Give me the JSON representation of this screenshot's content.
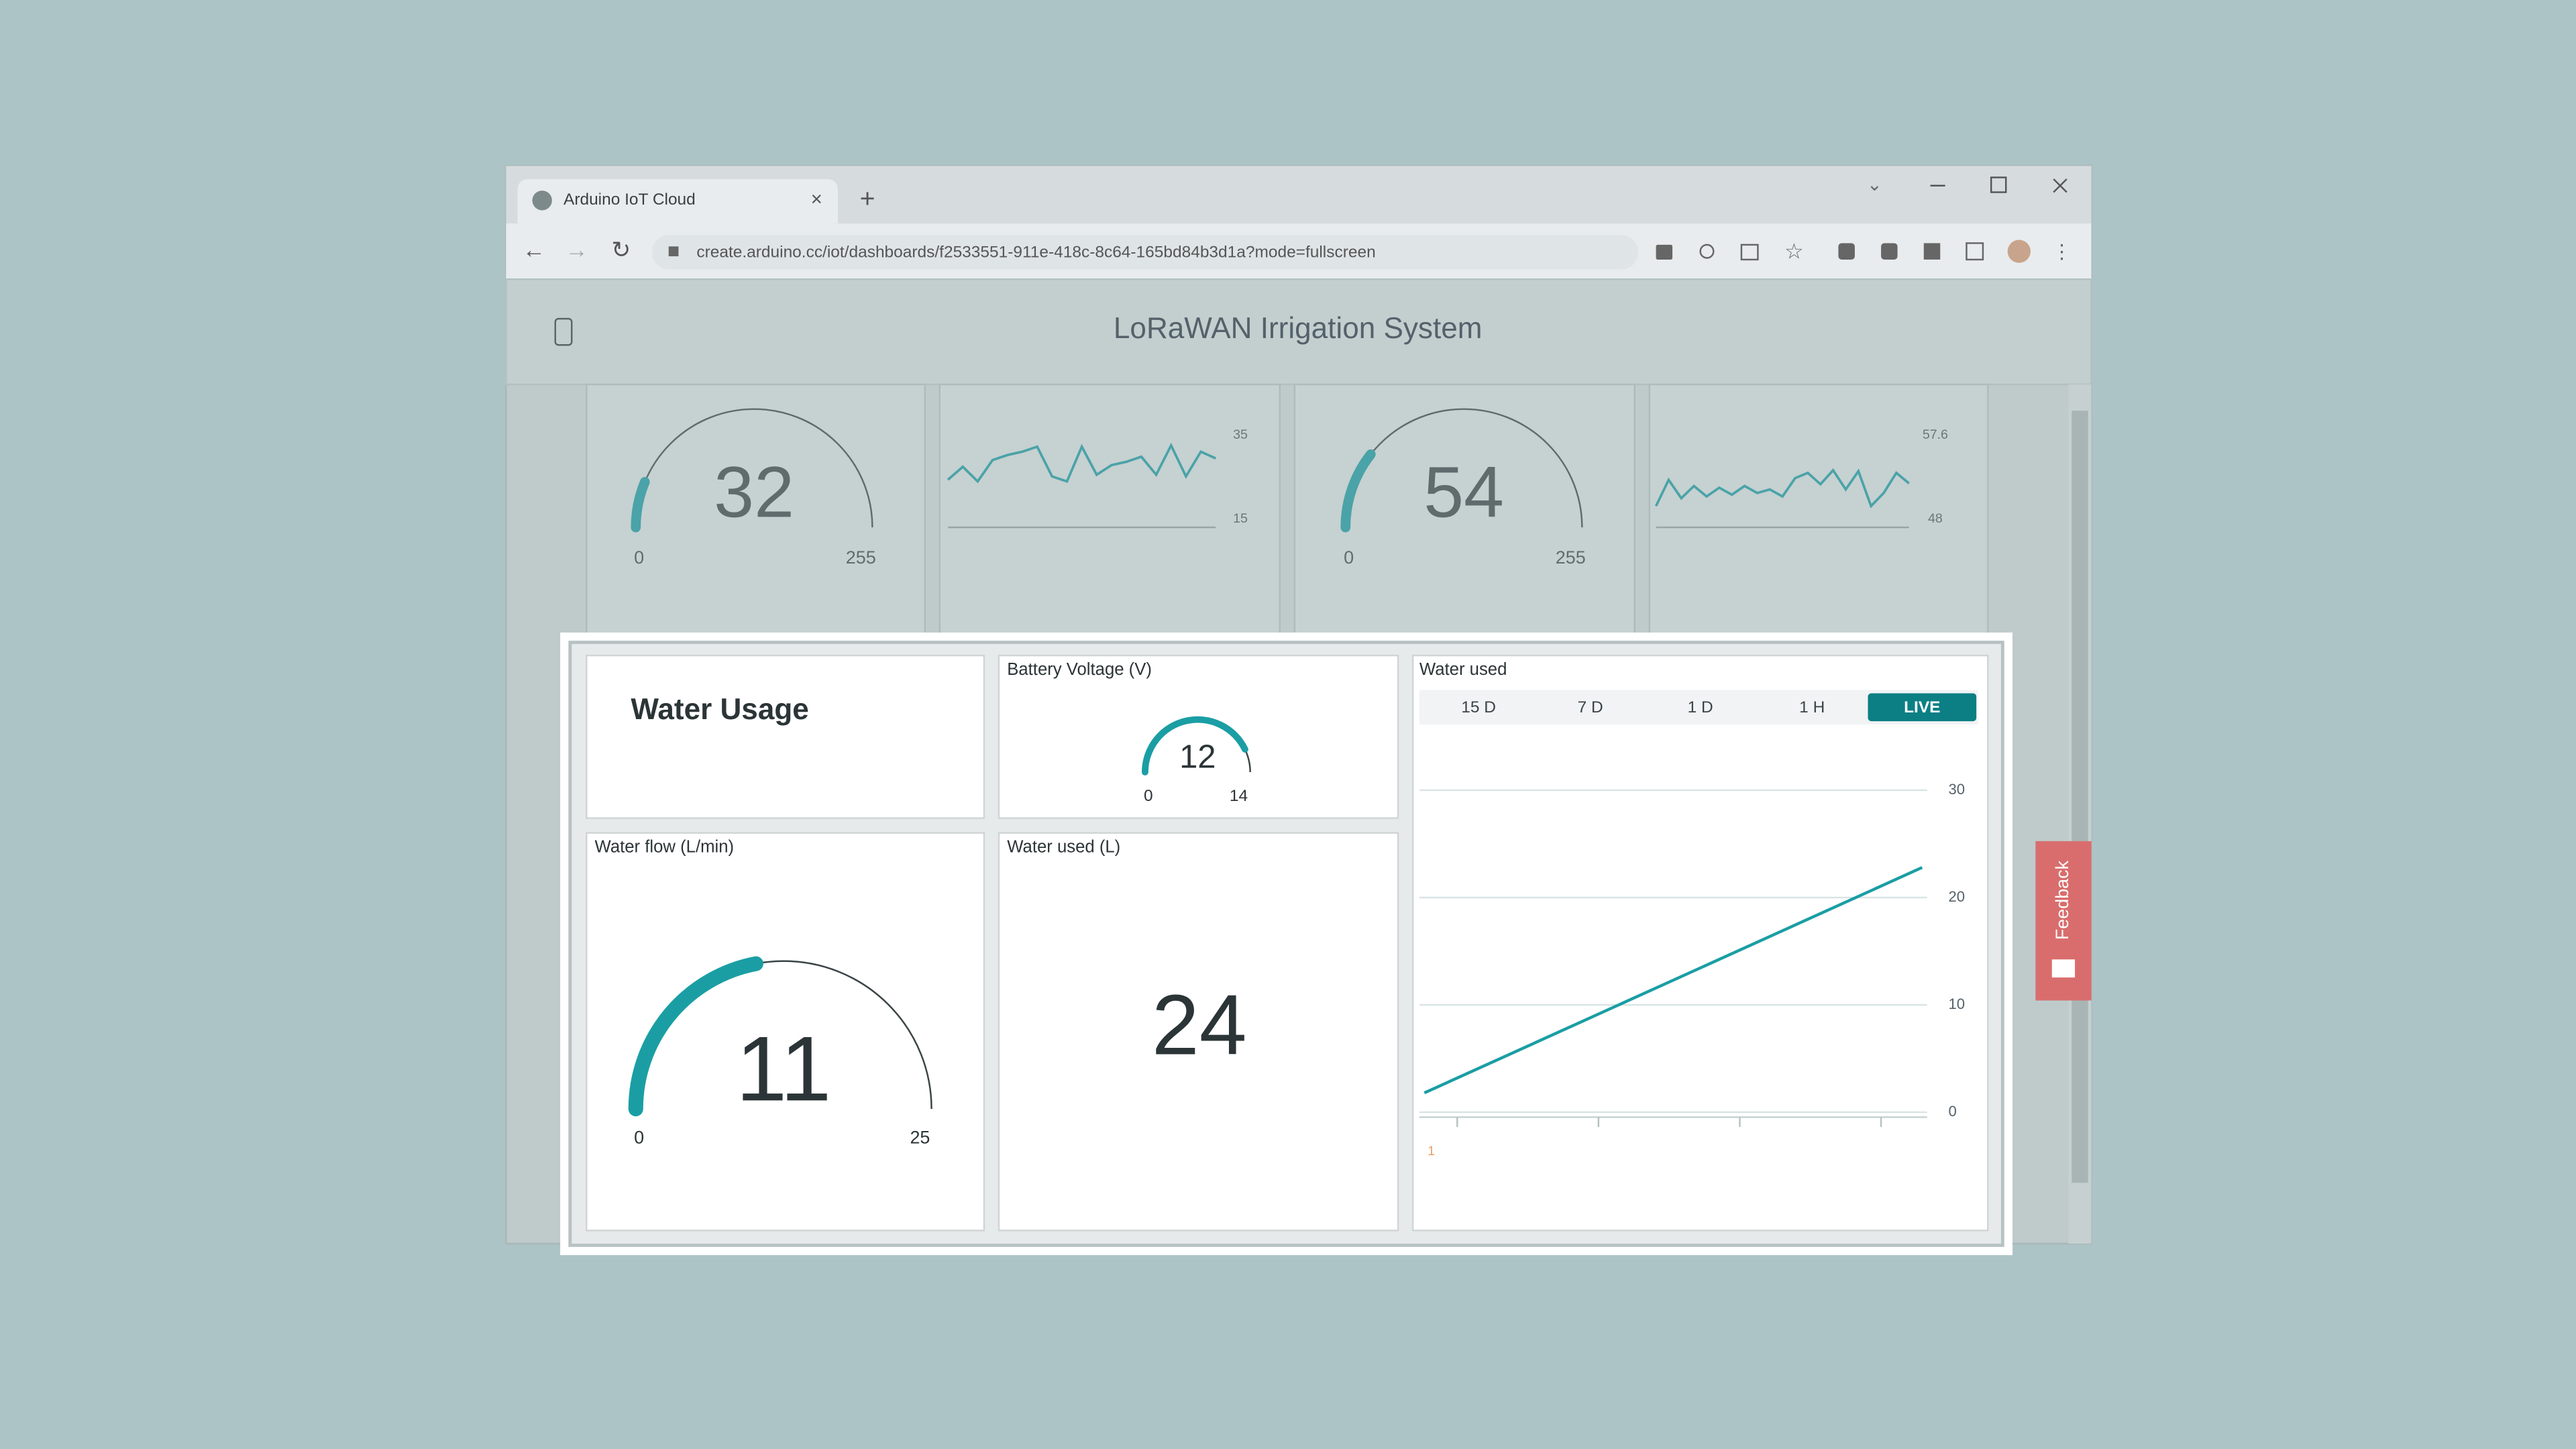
{
  "browser": {
    "tab_title": "Arduino IoT Cloud",
    "url": "create.arduino.cc/iot/dashboards/f2533551-911e-418c-8c64-165bd84b3d1a?mode=fullscreen"
  },
  "header": {
    "title": "LoRaWAN Irrigation System"
  },
  "widgets": [
    {
      "type": "gauge",
      "value": 32,
      "min": 0,
      "max": 255
    },
    {
      "type": "line",
      "values": [
        24.4,
        27.5,
        24,
        29.1,
        30.3,
        31.1,
        32.3,
        25.2,
        24,
        32.3,
        25.6,
        27.9,
        28.7,
        29.9,
        25.6,
        32.6,
        25.2,
        31.1,
        29.5
      ],
      "ylim": [
        15,
        35
      ],
      "yticks": [
        15,
        35
      ]
    },
    {
      "type": "gauge",
      "value": 54,
      "min": 0,
      "max": 255
    },
    {
      "type": "line",
      "values": [
        49.5,
        52.5,
        50.4,
        51.8,
        50.6,
        51.6,
        50.8,
        51.8,
        51.0,
        51.4,
        50.6,
        52.7,
        53.3,
        52.0,
        53.6,
        51.4,
        53.5,
        49.5,
        51.0,
        53.3,
        52.1
      ],
      "ylim": [
        48,
        57.6
      ],
      "yticks": [
        48,
        57.6
      ]
    },
    {
      "type": "text",
      "title": "Water Usage"
    },
    {
      "type": "gauge",
      "title": "Battery Voltage (V)",
      "value": 12,
      "min": 0,
      "max": 14
    },
    {
      "type": "chart",
      "title": "Water used",
      "ranges": [
        "15 D",
        "7 D",
        "1 D",
        "1 H",
        "LIVE"
      ],
      "active_range": 4,
      "values": [
        1.8,
        22.8
      ],
      "ylim": [
        0,
        30
      ],
      "yticks": [
        0,
        10,
        20,
        30
      ],
      "x_label": "1",
      "color": "#1a9ea4"
    },
    {
      "type": "gauge",
      "title": "Water flow (L/min)",
      "value": 11,
      "min": 0,
      "max": 25
    },
    {
      "type": "value",
      "title": "Water used (L)",
      "value": 24
    }
  ],
  "feedback": "Feedback"
}
